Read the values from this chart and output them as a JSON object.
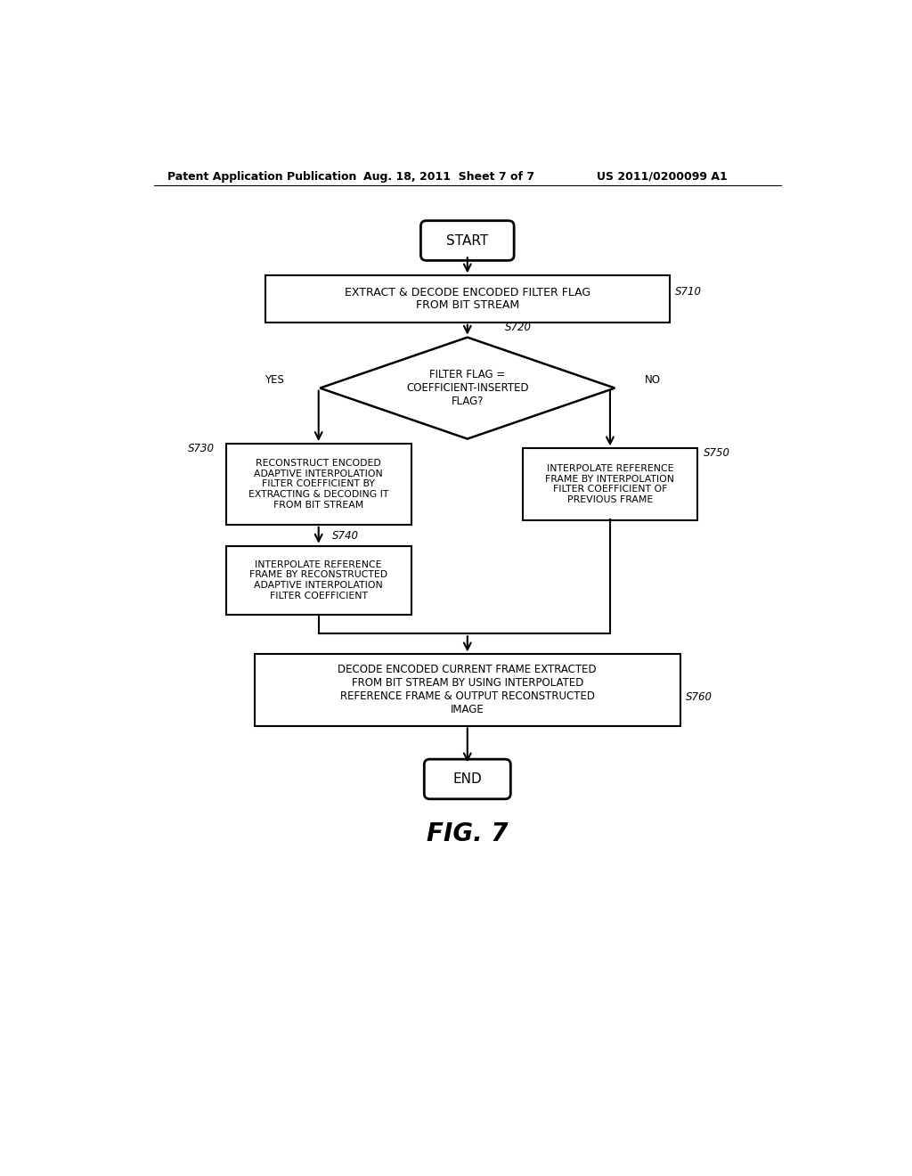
{
  "header_left": "Patent Application Publication",
  "header_center": "Aug. 18, 2011  Sheet 7 of 7",
  "header_right": "US 2011/0200099 A1",
  "figure_label": "FIG. 7",
  "bg_color": "#ffffff",
  "start_text": "START",
  "end_text": "END",
  "s710_text": "EXTRACT & DECODE ENCODED FILTER FLAG\nFROM BIT STREAM",
  "s710_label": "S710",
  "s720_text": "FILTER FLAG =\nCOEFFICIENT-INSERTED\nFLAG?",
  "s720_label": "S720",
  "s730_text": "RECONSTRUCT ENCODED\nADAPTIVE INTERPOLATION\nFILTER COEFFICIENT BY\nEXTRACTING & DECODING IT\nFROM BIT STREAM",
  "s730_label": "S730",
  "s740_text": "INTERPOLATE REFERENCE\nFRAME BY RECONSTRUCTED\nADAPTIVE INTERPOLATION\nFILTER COEFFICIENT",
  "s740_label": "S740",
  "s750_text": "INTERPOLATE REFERENCE\nFRAME BY INTERPOLATION\nFILTER COEFFICIENT OF\nPREVIOUS FRAME",
  "s750_label": "S750",
  "s760_text": "DECODE ENCODED CURRENT FRAME EXTRACTED\nFROM BIT STREAM BY USING INTERPOLATED\nREFERENCE FRAME & OUTPUT RECONSTRUCTED\nIMAGE",
  "s760_label": "S760",
  "yes_label": "YES",
  "no_label": "NO"
}
